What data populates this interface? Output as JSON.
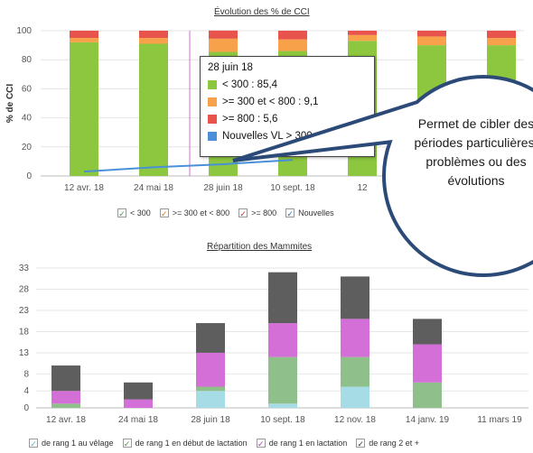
{
  "chart1": {
    "title": "Évolution des % de CCI",
    "ylabel": "% de CCI",
    "yticks": [
      "100",
      "80",
      "60",
      "40",
      "20",
      "0"
    ],
    "xticks": [
      "12 avr. 18",
      "24 mai 18",
      "28 juin 18",
      "10 sept. 18",
      "12"
    ],
    "legend": [
      {
        "label": "< 300",
        "color": "#8dc63f",
        "check_color": "#3c9a3c",
        "check": "✓"
      },
      {
        "label": ">= 300 et < 800",
        "color": "#f7a24b",
        "check_color": "#e07a1a",
        "check": "✓"
      },
      {
        "label": ">= 800",
        "color": "#e8534c",
        "check_color": "#d4332e",
        "check": "✓"
      },
      {
        "label": "Nouvelles",
        "color": "#4a90d9",
        "check_color": "#2a6fb0",
        "check": "✓"
      }
    ],
    "tooltip": {
      "date": "28 juin 18",
      "rows": [
        {
          "text": "< 300 : 85,4",
          "color": "#8dc63f"
        },
        {
          "text": ">= 300 et < 800 : 9,1",
          "color": "#f7a24b"
        },
        {
          "text": ">= 800 : 5,6",
          "color": "#e8534c"
        },
        {
          "text": "Nouvelles VL > 300 : 8,1",
          "color": "#4a90d9"
        }
      ]
    }
  },
  "chart_data": [
    {
      "type": "bar",
      "title": "Évolution des % de CCI",
      "ylabel": "% de CCI",
      "ylim": [
        0,
        100
      ],
      "categories": [
        "12 avr. 18",
        "24 mai 18",
        "28 juin 18",
        "10 sept. 18",
        "12 nov. 18",
        "14 janv. 19",
        "11 mars 19"
      ],
      "series": [
        {
          "name": "< 300",
          "values": [
            92,
            91,
            85.4,
            86,
            93,
            90,
            90
          ]
        },
        {
          "name": ">= 300 et < 800",
          "values": [
            3,
            4,
            9.1,
            8,
            4,
            6,
            5
          ]
        },
        {
          "name": ">= 800",
          "values": [
            5,
            5,
            5.6,
            6,
            3,
            4,
            5
          ]
        },
        {
          "name": "Nouvelles VL > 300",
          "values": [
            3,
            6,
            8.1,
            11,
            null,
            null,
            null
          ]
        }
      ]
    },
    {
      "type": "bar",
      "title": "Répartition des Mammites",
      "ylim": [
        0,
        33
      ],
      "categories": [
        "12 avr. 18",
        "24 mai 18",
        "28 juin 18",
        "10 sept. 18",
        "12 nov. 18",
        "14 janv. 19",
        "11 mars 19"
      ],
      "series": [
        {
          "name": "de rang 1 au vêlage",
          "values": [
            0,
            0,
            4,
            1,
            5,
            0,
            0
          ]
        },
        {
          "name": "de rang 1 en début de lactation",
          "values": [
            1,
            0,
            1,
            11,
            7,
            6,
            0
          ]
        },
        {
          "name": "de rang 1 en lactation",
          "values": [
            3,
            2,
            8,
            8,
            9,
            9,
            0
          ]
        },
        {
          "name": "de rang 2 et +",
          "values": [
            6,
            4,
            7,
            12,
            10,
            6,
            0
          ]
        }
      ]
    }
  ],
  "chart2": {
    "title": "Répartition des Mammites",
    "yticks": [
      "33",
      "28",
      "23",
      "18",
      "13",
      "8",
      "4",
      "0"
    ],
    "xticks": [
      "12 avr. 18",
      "24 mai 18",
      "28 juin 18",
      "10 sept. 18",
      "12 nov. 18",
      "14 janv. 19",
      "11 mars 19"
    ],
    "legend": [
      {
        "label": "de rang 1 au vêlage",
        "color": "#a6dce6",
        "check_color": "#5ab7c8",
        "check": "✓"
      },
      {
        "label": "de rang 1 en début de lactation",
        "color": "#8fbf8a",
        "check_color": "#4e8f4a",
        "check": "✓"
      },
      {
        "label": "de rang 1 en lactation",
        "color": "#d36fd6",
        "check_color": "#b040b4",
        "check": "✓"
      },
      {
        "label": "de rang 2 et +",
        "color": "#5e5e5e",
        "check_color": "#333333",
        "check": "✓"
      }
    ]
  },
  "callout": {
    "text": "Permet de cibler des périodes particulières, problèmes ou des évolutions",
    "bg": "#2c4a78"
  }
}
